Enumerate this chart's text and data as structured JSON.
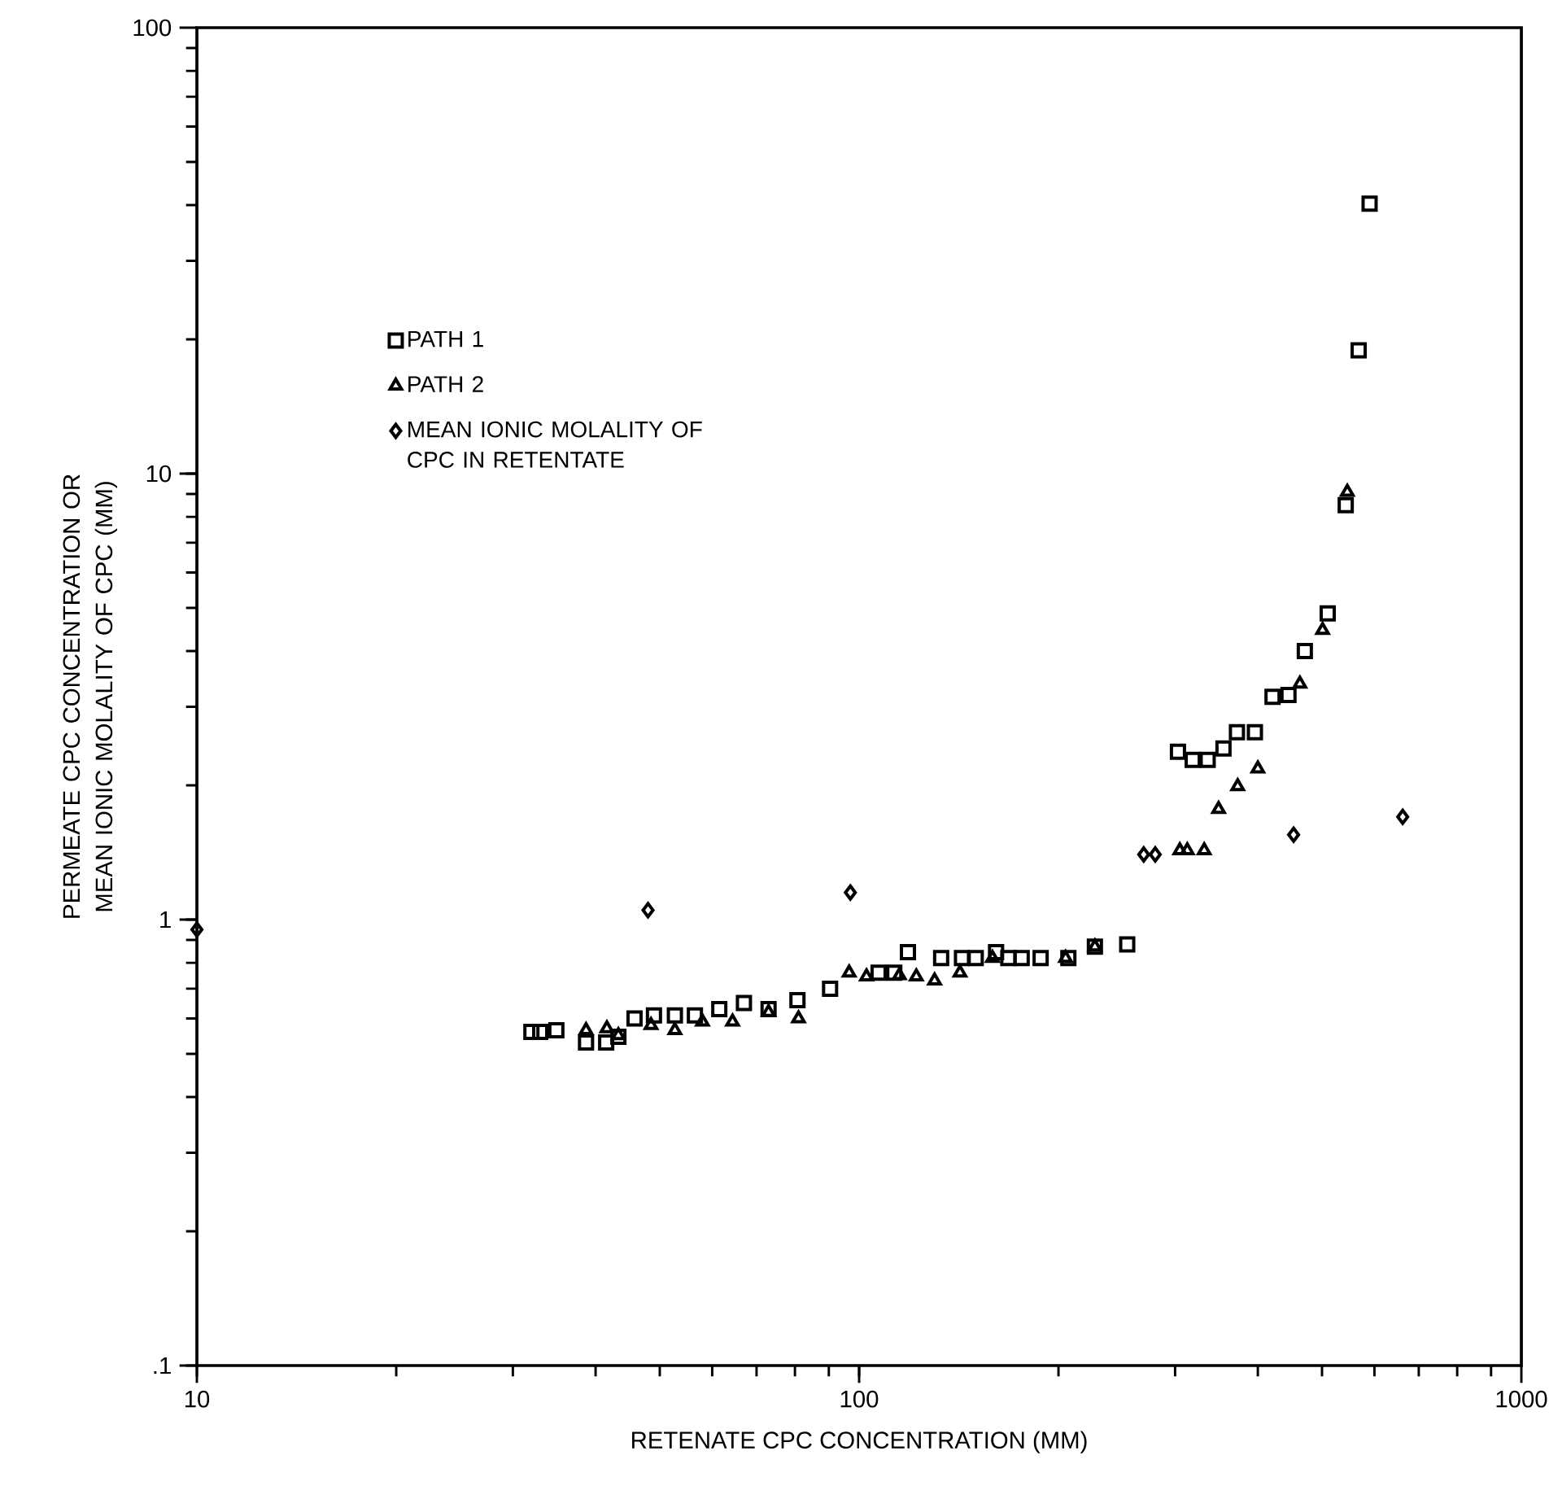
{
  "chart_data": {
    "type": "scatter",
    "xlabel": "RETENATE CPC CONCENTRATION (MM)",
    "ylabel": "PERMEATE CPC CONCENTRATION OR MEAN IONIC MOLALITY OF CPC (MM)",
    "log": "xy",
    "xlim": [
      10,
      1000
    ],
    "ylim": [
      0.1,
      100
    ],
    "xticks": [
      10,
      100,
      1000
    ],
    "yticks": [
      {
        "value": 0.1,
        "label": ".1"
      },
      1,
      10,
      100
    ],
    "legend": "top left",
    "grid": false,
    "series": [
      {
        "name": "PATH 1",
        "color": "#000000",
        "marker": "square",
        "x": [
          32,
          33,
          34.9,
          38.7,
          41.5,
          43.3,
          45.8,
          49,
          52.7,
          56.5,
          61.5,
          67,
          73,
          80.7,
          90.4,
          107,
          113,
          118.5,
          133,
          143,
          150,
          161,
          168,
          176,
          188,
          207,
          227,
          254,
          303,
          319,
          336,
          355,
          372,
          396,
          421,
          445,
          471,
          510,
          543,
          568,
          590
        ],
        "values": [
          0.56,
          0.56,
          0.565,
          0.53,
          0.53,
          0.546,
          0.6,
          0.61,
          0.61,
          0.61,
          0.63,
          0.65,
          0.63,
          0.66,
          0.7,
          0.76,
          0.76,
          0.845,
          0.82,
          0.82,
          0.82,
          0.845,
          0.82,
          0.82,
          0.82,
          0.82,
          0.87,
          0.88,
          2.38,
          2.28,
          2.28,
          2.42,
          2.63,
          2.63,
          3.16,
          3.19,
          4.0,
          4.86,
          8.5,
          18.9,
          40.3
        ]
      },
      {
        "name": "PATH 2",
        "color": "#000000",
        "marker": "triangle",
        "x": [
          38.7,
          41.6,
          43.3,
          48.5,
          52.7,
          58,
          64.4,
          73,
          81,
          96.6,
          102.6,
          115,
          122,
          130,
          142,
          159,
          205,
          227,
          305,
          313,
          332,
          349,
          373,
          400,
          463,
          501,
          546
        ],
        "values": [
          0.565,
          0.57,
          0.55,
          0.58,
          0.565,
          0.59,
          0.59,
          0.62,
          0.6,
          0.76,
          0.745,
          0.75,
          0.745,
          0.73,
          0.76,
          0.82,
          0.82,
          0.87,
          1.43,
          1.43,
          1.43,
          1.77,
          1.99,
          2.18,
          3.38,
          4.46,
          9.1
        ]
      },
      {
        "name": "MEAN IONIC MOLALITY OF CPC IN RETENTATE",
        "color": "#000000",
        "marker": "diamond",
        "x": [
          10,
          48,
          97,
          269,
          280,
          453,
          662
        ],
        "values": [
          0.95,
          1.05,
          1.15,
          1.4,
          1.4,
          1.55,
          1.7
        ]
      }
    ]
  }
}
